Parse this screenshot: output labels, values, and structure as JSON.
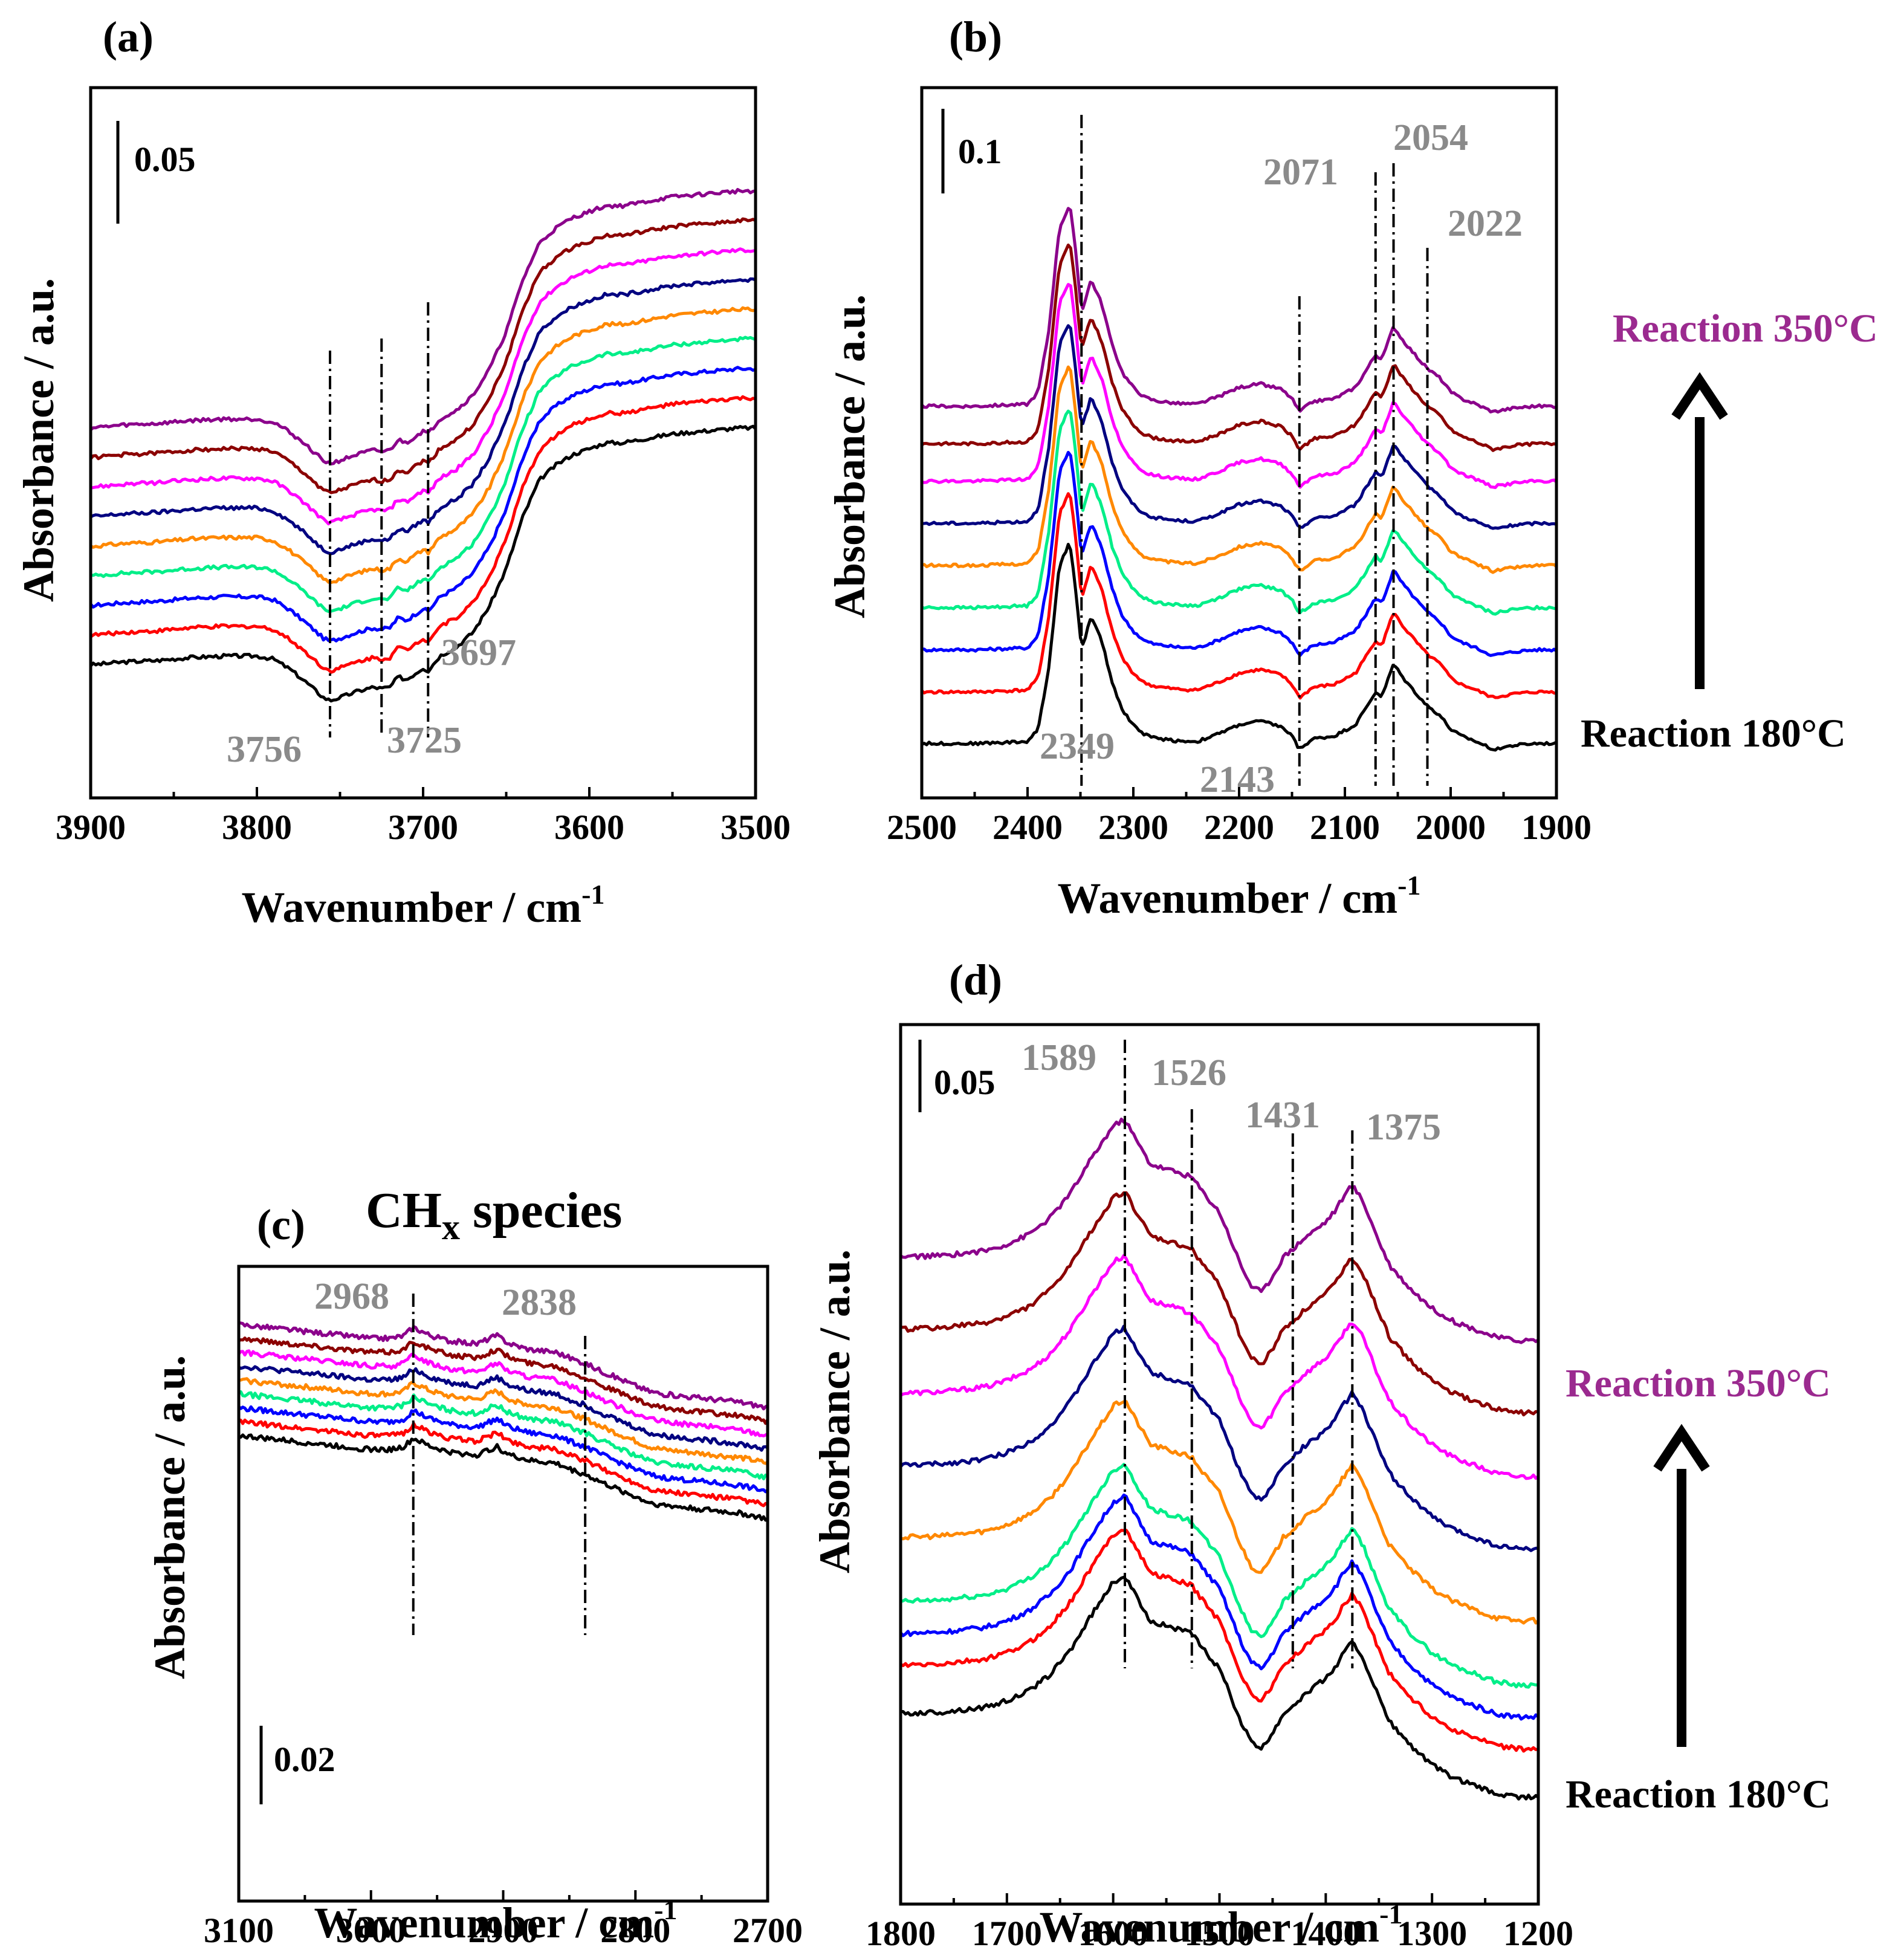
{
  "figure": {
    "description_free": true
  },
  "chart_data": [
    {
      "id": "a",
      "type": "line",
      "panel_label": "(a)",
      "xlabel": "Wavenumber / cm",
      "xlabel_superscript": "-1",
      "ylabel": "Absorbance / a.u.",
      "xlim": [
        3900,
        3500
      ],
      "xticks": [
        "3900",
        "3800",
        "3700",
        "3600",
        "3500"
      ],
      "scale_bar": "0.05",
      "peaks": [
        {
          "label": "3756",
          "x": 3756
        },
        {
          "label": "3725",
          "x": 3725
        },
        {
          "label": "3697",
          "x": 3697
        }
      ],
      "series_colors": [
        "#000000",
        "#ff0000",
        "#0000ff",
        "#00ee88",
        "#ff8800",
        "#000080",
        "#ff00ff",
        "#8b0000",
        "#8b008b"
      ],
      "baseline": {
        "x": [
          3900,
          3880,
          3860,
          3840,
          3820,
          3800,
          3790,
          3780,
          3770,
          3760,
          3756,
          3750,
          3740,
          3730,
          3725,
          3720,
          3715,
          3710,
          3700,
          3697,
          3690,
          3680,
          3670,
          3660,
          3650,
          3640,
          3630,
          3620,
          3610,
          3600,
          3590,
          3580,
          3570,
          3560,
          3550,
          3540,
          3530,
          3520,
          3510,
          3500
        ],
        "y": [
          0.0,
          0.002,
          0.003,
          0.005,
          0.006,
          0.006,
          0.004,
          -0.003,
          -0.012,
          -0.022,
          -0.024,
          -0.022,
          -0.018,
          -0.015,
          -0.016,
          -0.015,
          -0.008,
          -0.01,
          -0.002,
          -0.004,
          0.006,
          0.012,
          0.022,
          0.04,
          0.065,
          0.1,
          0.125,
          0.135,
          0.142,
          0.146,
          0.15,
          0.15,
          0.152,
          0.154,
          0.156,
          0.157,
          0.158,
          0.159,
          0.16,
          0.16
        ]
      },
      "offsets": [
        0,
        0.02,
        0.04,
        0.06,
        0.08,
        0.1,
        0.12,
        0.14,
        0.16
      ]
    },
    {
      "id": "b",
      "type": "line",
      "panel_label": "(b)",
      "xlabel": "Wavenumber / cm",
      "xlabel_superscript": "-1",
      "ylabel": "Absorbance / a.u.",
      "xlim": [
        2500,
        1900
      ],
      "xticks": [
        "2500",
        "2400",
        "2300",
        "2200",
        "2100",
        "2000",
        "1900"
      ],
      "scale_bar": "0.1",
      "peaks": [
        {
          "label": "2349",
          "x": 2349
        },
        {
          "label": "2143",
          "x": 2143
        },
        {
          "label": "2071",
          "x": 2071
        },
        {
          "label": "2054",
          "x": 2054
        },
        {
          "label": "2022",
          "x": 2022
        }
      ],
      "temperature_labels": {
        "high": "Reaction 350°C",
        "low": "Reaction 180°C"
      },
      "series_colors": [
        "#000000",
        "#ff0000",
        "#0000ff",
        "#00ee88",
        "#ff8800",
        "#000080",
        "#ff00ff",
        "#8b0000",
        "#8b008b"
      ],
      "baseline": {
        "x": [
          2500,
          2450,
          2400,
          2390,
          2380,
          2370,
          2360,
          2355,
          2349,
          2340,
          2330,
          2320,
          2310,
          2300,
          2290,
          2280,
          2260,
          2240,
          2220,
          2200,
          2180,
          2160,
          2150,
          2143,
          2130,
          2110,
          2090,
          2080,
          2071,
          2065,
          2054,
          2045,
          2030,
          2022,
          2010,
          2000,
          1990,
          1980,
          1960,
          1940,
          1920,
          1900
        ],
        "y": [
          0.0,
          0.0,
          0.002,
          0.015,
          0.08,
          0.19,
          0.215,
          0.17,
          0.1,
          0.135,
          0.11,
          0.065,
          0.035,
          0.02,
          0.01,
          0.006,
          0.003,
          0.002,
          0.01,
          0.02,
          0.024,
          0.018,
          0.008,
          -0.006,
          0.005,
          0.008,
          0.02,
          0.038,
          0.055,
          0.05,
          0.085,
          0.07,
          0.05,
          0.04,
          0.03,
          0.015,
          0.008,
          0.004,
          -0.006,
          -0.002,
          0.0,
          0.0
        ]
      },
      "offsets": [
        0,
        0.055,
        0.1,
        0.145,
        0.19,
        0.235,
        0.28,
        0.32,
        0.36
      ]
    },
    {
      "id": "c",
      "type": "line",
      "panel_label": "(c)",
      "panel_title": "CH",
      "panel_title_subscript": "x",
      "panel_title_suffix": " species",
      "xlabel": "Wavenumber / cm",
      "xlabel_superscript": "-1",
      "ylabel": "Absorbance / a.u.",
      "xlim": [
        3100,
        2700
      ],
      "xticks": [
        "3100",
        "3000",
        "2900",
        "2800",
        "2700"
      ],
      "scale_bar": "0.02",
      "peaks": [
        {
          "label": "2968",
          "x": 2968
        },
        {
          "label": "2838",
          "x": 2838
        }
      ],
      "series_colors": [
        "#000000",
        "#ff0000",
        "#0000ff",
        "#00ee88",
        "#ff8800",
        "#000080",
        "#ff00ff",
        "#8b0000",
        "#8b008b"
      ],
      "baseline": {
        "x": [
          3100,
          3080,
          3060,
          3040,
          3020,
          3000,
          2985,
          2975,
          2968,
          2955,
          2940,
          2920,
          2905,
          2895,
          2880,
          2860,
          2850,
          2838,
          2825,
          2810,
          2800,
          2790,
          2780,
          2760,
          2740,
          2720,
          2700
        ],
        "y": [
          0.0,
          -0.001,
          -0.002,
          -0.003,
          -0.004,
          -0.005,
          -0.005,
          -0.004,
          -0.001,
          -0.004,
          -0.006,
          -0.007,
          -0.004,
          -0.007,
          -0.009,
          -0.01,
          -0.012,
          -0.014,
          -0.017,
          -0.02,
          -0.022,
          -0.024,
          -0.025,
          -0.026,
          -0.027,
          -0.028,
          -0.03
        ]
      },
      "offsets": [
        0,
        0.005,
        0.01,
        0.015,
        0.02,
        0.025,
        0.03,
        0.035,
        0.04
      ]
    },
    {
      "id": "d",
      "type": "line",
      "panel_label": "(d)",
      "xlabel": "Wavenumber / cm",
      "xlabel_superscript": "-1",
      "ylabel": "Absorbance / a.u.",
      "xlim": [
        1800,
        1200
      ],
      "xticks": [
        "1800",
        "1700",
        "1600",
        "1500",
        "1400",
        "1300",
        "1200"
      ],
      "scale_bar": "0.05",
      "peaks": [
        {
          "label": "1589",
          "x": 1589
        },
        {
          "label": "1526",
          "x": 1526
        },
        {
          "label": "1431",
          "x": 1431
        },
        {
          "label": "1375",
          "x": 1375
        }
      ],
      "temperature_labels": {
        "high": "Reaction 350°C",
        "low": "Reaction 180°C"
      },
      "series_colors": [
        "#000000",
        "#ff0000",
        "#0000ff",
        "#00ee88",
        "#ff8800",
        "#000080",
        "#ff00ff",
        "#8b0000",
        "#8b008b"
      ],
      "baseline": {
        "x": [
          1800,
          1760,
          1720,
          1700,
          1680,
          1660,
          1640,
          1620,
          1600,
          1589,
          1580,
          1565,
          1550,
          1540,
          1526,
          1515,
          1500,
          1490,
          1480,
          1470,
          1460,
          1450,
          1440,
          1431,
          1420,
          1400,
          1390,
          1385,
          1375,
          1365,
          1350,
          1340,
          1320,
          1300,
          1280,
          1260,
          1240,
          1220,
          1200
        ],
        "y": [
          0.0,
          0.001,
          0.004,
          0.008,
          0.014,
          0.024,
          0.04,
          0.062,
          0.082,
          0.086,
          0.075,
          0.058,
          0.055,
          0.053,
          0.05,
          0.04,
          0.028,
          0.012,
          -0.005,
          -0.018,
          -0.022,
          -0.012,
          0.0,
          0.005,
          0.012,
          0.022,
          0.03,
          0.036,
          0.045,
          0.035,
          0.01,
          -0.005,
          -0.02,
          -0.032,
          -0.04,
          -0.045,
          -0.05,
          -0.052,
          -0.052
        ]
      },
      "offsets": [
        0,
        0.03,
        0.05,
        0.07,
        0.11,
        0.155,
        0.2,
        0.24,
        0.285
      ]
    }
  ]
}
